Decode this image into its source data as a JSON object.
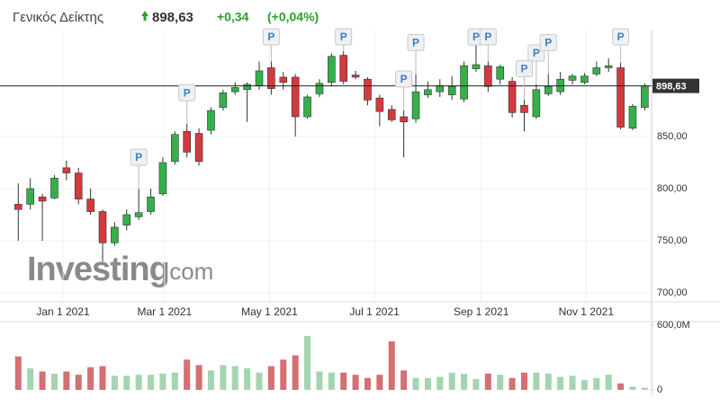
{
  "header": {
    "title": "Γενικός Δείκτης",
    "change": "+0,34",
    "change_pct": "(+0,04%)"
  },
  "chart_data": {
    "type": "candlestick",
    "current_price": {
      "value": 898.63,
      "label": "898,63"
    },
    "watermark": {
      "brand": "Investing",
      "suffix": ".com"
    },
    "x": [
      "2020-12-06",
      "2020-12-13",
      "2020-12-20",
      "2020-12-27",
      "2021-01-03",
      "2021-01-10",
      "2021-01-17",
      "2021-01-24",
      "2021-01-31",
      "2021-02-07",
      "2021-02-14",
      "2021-02-21",
      "2021-02-28",
      "2021-03-07",
      "2021-03-14",
      "2021-03-21",
      "2021-03-28",
      "2021-04-04",
      "2021-04-11",
      "2021-04-18",
      "2021-04-25",
      "2021-05-02",
      "2021-05-09",
      "2021-05-16",
      "2021-05-23",
      "2021-05-30",
      "2021-06-06",
      "2021-06-13",
      "2021-06-20",
      "2021-06-27",
      "2021-07-04",
      "2021-07-11",
      "2021-07-18",
      "2021-07-25",
      "2021-08-01",
      "2021-08-08",
      "2021-08-15",
      "2021-08-22",
      "2021-08-29",
      "2021-09-05",
      "2021-09-12",
      "2021-09-19",
      "2021-09-26",
      "2021-10-03",
      "2021-10-10",
      "2021-10-17",
      "2021-10-24",
      "2021-10-31",
      "2021-11-07",
      "2021-11-14",
      "2021-11-21",
      "2021-11-28",
      "2021-12-05"
    ],
    "open": [
      785,
      785,
      792,
      791,
      820,
      815,
      790,
      778,
      748,
      765,
      773,
      778,
      795,
      826,
      855,
      853,
      856,
      878,
      893,
      895,
      899,
      916,
      907,
      907,
      869,
      891,
      902,
      928,
      909,
      905,
      887,
      876,
      869,
      867,
      890,
      893,
      890,
      886,
      915,
      918,
      905,
      903,
      880,
      869,
      891,
      893,
      904,
      902,
      910,
      916,
      916,
      858,
      878
    ],
    "high": [
      805,
      810,
      795,
      813,
      827,
      820,
      800,
      780,
      768,
      780,
      800,
      800,
      830,
      855,
      862,
      858,
      878,
      895,
      902,
      902,
      922,
      922,
      912,
      910,
      890,
      905,
      930,
      932,
      913,
      907,
      890,
      880,
      875,
      910,
      903,
      905,
      908,
      922,
      945,
      922,
      919,
      907,
      885,
      900,
      910,
      912,
      910,
      911,
      922,
      925,
      921,
      881,
      901
    ],
    "low": [
      750,
      780,
      750,
      790,
      808,
      785,
      775,
      730,
      745,
      760,
      770,
      775,
      793,
      823,
      830,
      822,
      852,
      875,
      890,
      864,
      895,
      890,
      895,
      850,
      867,
      888,
      898,
      900,
      905,
      880,
      860,
      864,
      830,
      863,
      887,
      888,
      885,
      883,
      912,
      893,
      900,
      868,
      855,
      867,
      889,
      890,
      900,
      900,
      908,
      912,
      857,
      856,
      875
    ],
    "close": [
      780,
      800,
      788,
      810,
      815,
      790,
      778,
      748,
      763,
      775,
      777,
      792,
      825,
      852,
      835,
      826,
      875,
      892,
      897,
      900,
      913,
      896,
      902,
      869,
      888,
      901,
      927,
      903,
      907,
      885,
      874,
      866,
      864,
      893,
      895,
      899,
      898,
      918,
      919,
      898,
      917,
      873,
      873,
      895,
      898,
      905,
      908,
      908,
      916,
      918,
      859,
      879,
      898.63
    ],
    "volume": [
      310,
      200,
      170,
      150,
      170,
      140,
      210,
      220,
      130,
      130,
      140,
      140,
      150,
      160,
      280,
      230,
      180,
      230,
      220,
      200,
      160,
      220,
      280,
      320,
      500,
      170,
      160,
      160,
      140,
      110,
      140,
      450,
      180,
      110,
      110,
      120,
      160,
      150,
      100,
      150,
      140,
      110,
      160,
      160,
      150,
      120,
      130,
      90,
      110,
      140,
      60,
      30,
      20
    ],
    "markers": [
      {
        "x": "2021-02-14",
        "label": "P"
      },
      {
        "x": "2021-03-14",
        "label": "P"
      },
      {
        "x": "2021-05-02",
        "label": "P"
      },
      {
        "x": "2021-06-13",
        "label": "P"
      },
      {
        "x": "2021-07-18",
        "label": "P"
      },
      {
        "x": "2021-07-25",
        "label": "P"
      },
      {
        "x": "2021-08-29",
        "label": "P"
      },
      {
        "x": "2021-09-05",
        "label": "P"
      },
      {
        "x": "2021-09-26",
        "label": "P"
      },
      {
        "x": "2021-10-03",
        "label": "P"
      },
      {
        "x": "2021-10-10",
        "label": "P"
      },
      {
        "x": "2021-11-21",
        "label": "P"
      }
    ],
    "up_color": "#34b04a",
    "down_color": "#d23a3e",
    "volume_up_color": "#a3d5b0",
    "volume_down_color": "#d46f72",
    "xlim": [
      "2020-11-28",
      "2021-12-09"
    ],
    "xticks": [
      {
        "value": "2021-01-01",
        "label": "Jan 1 2021"
      },
      {
        "value": "2021-03-01",
        "label": "Mar 1 2021"
      },
      {
        "value": "2021-05-01",
        "label": "May 1 2021"
      },
      {
        "value": "2021-07-01",
        "label": "Jul 1 2021"
      },
      {
        "value": "2021-09-01",
        "label": "Sep 1 2021"
      },
      {
        "value": "2021-11-01",
        "label": "Nov 1 2021"
      }
    ],
    "ylim": [
      692,
      950
    ],
    "yticks": [
      {
        "value": 700,
        "label": "700,00"
      },
      {
        "value": 750,
        "label": "750,00"
      },
      {
        "value": 800,
        "label": "800,00"
      },
      {
        "value": 850,
        "label": "850,00"
      }
    ],
    "volume_ylim": [
      0,
      600
    ],
    "volume_yticks": [
      0,
      {
        "value": 600,
        "label": "600,0M"
      }
    ],
    "grid": true
  }
}
